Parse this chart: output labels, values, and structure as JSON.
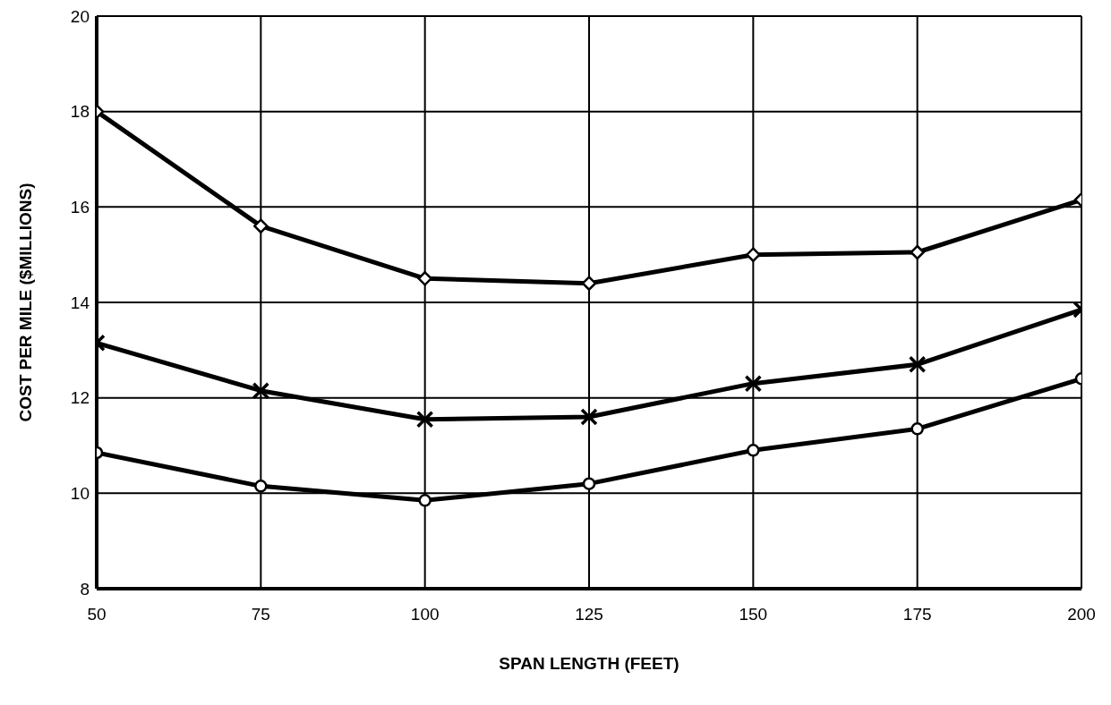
{
  "chart_data": {
    "type": "line",
    "xlabel": "SPAN LENGTH (FEET)",
    "ylabel": "COST PER MILE ($MILLIONS)",
    "x": [
      50,
      75,
      100,
      125,
      150,
      175,
      200
    ],
    "series": [
      {
        "color": "#000000",
        "marker": "diamond",
        "values": [
          18.0,
          15.6,
          14.5,
          14.4,
          15.0,
          15.05,
          16.15
        ]
      },
      {
        "color": "#000000",
        "marker": "cross",
        "values": [
          13.15,
          12.15,
          11.55,
          11.6,
          12.3,
          12.7,
          13.85
        ]
      },
      {
        "color": "#000000",
        "marker": "circle",
        "values": [
          10.85,
          10.15,
          9.85,
          10.2,
          10.9,
          11.35,
          12.4
        ]
      }
    ],
    "xlim": [
      50,
      200
    ],
    "xticks": [
      50,
      75,
      100,
      125,
      150,
      175,
      200
    ],
    "ylim": [
      8,
      20
    ],
    "yticks": [
      8,
      10,
      12,
      14,
      16,
      18,
      20
    ],
    "grid": true,
    "line_style": "solid"
  }
}
